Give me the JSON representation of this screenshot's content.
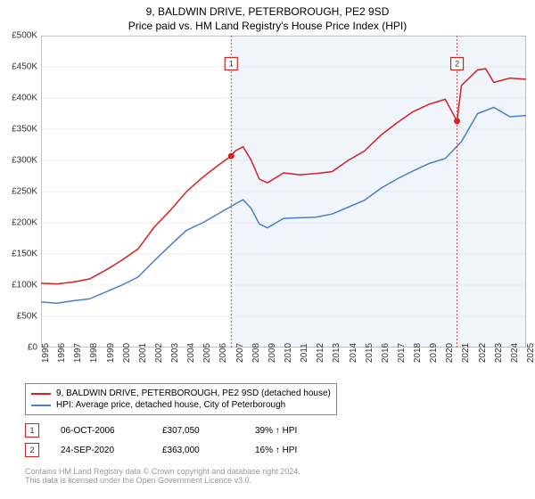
{
  "title": "9, BALDWIN DRIVE, PETERBOROUGH, PE2 9SD",
  "subtitle": "Price paid vs. HM Land Registry's House Price Index (HPI)",
  "chart": {
    "type": "line",
    "background_color": "#ffffff",
    "shaded_color": "#f0f4fb",
    "grid_color": "#e0e0e0",
    "ylim": [
      0,
      500000
    ],
    "ytick_step": 50000,
    "ytick_labels": [
      "£0",
      "£50K",
      "£100K",
      "£150K",
      "£200K",
      "£250K",
      "£300K",
      "£350K",
      "£400K",
      "£450K",
      "£500K"
    ],
    "xlim": [
      1995,
      2025
    ],
    "xtick_labels": [
      "1995",
      "1996",
      "1997",
      "1998",
      "1999",
      "2000",
      "2001",
      "2002",
      "2003",
      "2004",
      "2005",
      "2006",
      "2007",
      "2008",
      "2009",
      "2010",
      "2011",
      "2012",
      "2013",
      "2014",
      "2015",
      "2016",
      "2017",
      "2018",
      "2019",
      "2020",
      "2021",
      "2022",
      "2023",
      "2024",
      "2025"
    ],
    "series": [
      {
        "name": "property",
        "label": "9, BALDWIN DRIVE, PETERBOROUGH, PE2 9SD (detached house)",
        "color": "#d92020",
        "line_width": 1.5,
        "x": [
          1995,
          1996,
          1997,
          1998,
          1999,
          2000,
          2001,
          2002,
          2003,
          2004,
          2005,
          2006,
          2006.76,
          2007,
          2007.5,
          2008,
          2008.5,
          2009,
          2010,
          2011,
          2012,
          2013,
          2014,
          2015,
          2016,
          2017,
          2018,
          2019,
          2020,
          2020.73,
          2021,
          2022,
          2022.5,
          2023,
          2024,
          2025
        ],
        "y": [
          103000,
          102000,
          105000,
          110000,
          124000,
          140000,
          158000,
          193000,
          220000,
          250000,
          273000,
          293000,
          307050,
          315000,
          322000,
          300000,
          270000,
          264000,
          280000,
          277000,
          279000,
          282000,
          300000,
          315000,
          340000,
          360000,
          378000,
          390000,
          398000,
          363000,
          420000,
          445000,
          447000,
          425000,
          432000,
          430000
        ]
      },
      {
        "name": "hpi",
        "label": "HPI: Average price, detached house, City of Peterborough",
        "color": "#4a7fc9",
        "line_width": 1.5,
        "x": [
          1995,
          1996,
          1997,
          1998,
          1999,
          2000,
          2001,
          2002,
          2003,
          2004,
          2005,
          2006,
          2007,
          2007.5,
          2008,
          2008.5,
          2009,
          2010,
          2011,
          2012,
          2013,
          2014,
          2015,
          2016,
          2017,
          2018,
          2019,
          2020,
          2021,
          2022,
          2023,
          2024,
          2025
        ],
        "y": [
          73000,
          71000,
          75000,
          78000,
          89000,
          100000,
          113000,
          139000,
          164000,
          188000,
          200000,
          215000,
          230000,
          237000,
          223000,
          198000,
          192000,
          207000,
          208000,
          209000,
          214000,
          225000,
          236000,
          255000,
          270000,
          283000,
          295000,
          303000,
          330000,
          375000,
          385000,
          370000,
          372000
        ]
      }
    ],
    "markers": [
      {
        "id": "1",
        "x": 2006.76,
        "y": 307050,
        "box_y": 455000,
        "color": "#d92020",
        "dash_color": "#d92020"
      },
      {
        "id": "2",
        "x": 2020.73,
        "y": 363000,
        "box_y": 455000,
        "color": "#d92020",
        "dash_color": "#d92020"
      }
    ],
    "shaded_range": [
      2006.76,
      2025
    ]
  },
  "legend": {
    "items": [
      {
        "color": "#d92020",
        "label": "9, BALDWIN DRIVE, PETERBOROUGH, PE2 9SD (detached house)"
      },
      {
        "color": "#4a7fc9",
        "label": "HPI: Average price, detached house, City of Peterborough"
      }
    ]
  },
  "sales": [
    {
      "id": "1",
      "color": "#d92020",
      "date": "06-OCT-2006",
      "price": "£307,050",
      "delta": "39% ↑ HPI"
    },
    {
      "id": "2",
      "color": "#d92020",
      "date": "24-SEP-2020",
      "price": "£363,000",
      "delta": "16% ↑ HPI"
    }
  ],
  "footer": {
    "line1": "Contains HM Land Registry data © Crown copyright and database right 2024.",
    "line2": "This data is licensed under the Open Government Licence v3.0."
  }
}
